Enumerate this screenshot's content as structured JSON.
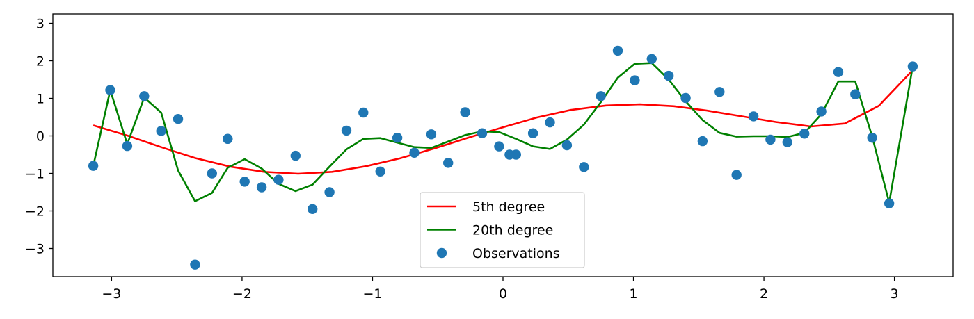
{
  "chart_data": {
    "type": "line",
    "title": "",
    "xlabel": "",
    "ylabel": "",
    "xlim": [
      -3.45,
      3.45
    ],
    "ylim": [
      -3.75,
      3.25
    ],
    "grid": false,
    "legend_position": "bottom-center",
    "xticks": [
      -3,
      -2,
      -1,
      0,
      1,
      2,
      3
    ],
    "yticks": [
      -3,
      -2,
      -1,
      0,
      1,
      2,
      3
    ],
    "xtick_labels": [
      "−3",
      "−2",
      "−1",
      "0",
      "1",
      "2",
      "3"
    ],
    "ytick_labels": [
      "−3",
      "−2",
      "−1",
      "0",
      "1",
      "2",
      "3"
    ],
    "series": [
      {
        "name": "5th degree",
        "kind": "line",
        "color": "#ff0000",
        "x": [
          -3.14,
          -2.88,
          -2.62,
          -2.36,
          -2.09,
          -1.83,
          -1.57,
          -1.31,
          -1.05,
          -0.79,
          -0.52,
          -0.26,
          0.0,
          0.26,
          0.52,
          0.79,
          1.05,
          1.31,
          1.57,
          1.83,
          2.09,
          2.36,
          2.62,
          2.88,
          3.14
        ],
        "y": [
          0.28,
          0.01,
          -0.3,
          -0.59,
          -0.82,
          -0.96,
          -1.01,
          -0.96,
          -0.81,
          -0.6,
          -0.33,
          -0.04,
          0.23,
          0.49,
          0.69,
          0.81,
          0.84,
          0.79,
          0.67,
          0.52,
          0.37,
          0.25,
          0.33,
          0.8,
          1.75
        ]
      },
      {
        "name": "20th degree",
        "kind": "line",
        "color": "#008000",
        "x": [
          -3.14,
          -3.01,
          -2.88,
          -2.75,
          -2.62,
          -2.49,
          -2.36,
          -2.23,
          -2.11,
          -1.98,
          -1.85,
          -1.72,
          -1.59,
          -1.46,
          -1.33,
          -1.2,
          -1.07,
          -0.94,
          -0.81,
          -0.68,
          -0.55,
          -0.42,
          -0.29,
          -0.16,
          -0.03,
          0.1,
          0.23,
          0.36,
          0.49,
          0.62,
          0.75,
          0.88,
          1.01,
          1.14,
          1.27,
          1.4,
          1.53,
          1.66,
          1.79,
          1.92,
          2.05,
          2.18,
          2.31,
          2.44,
          2.57,
          2.7,
          2.83,
          2.96,
          3.14
        ],
        "y": [
          -0.8,
          1.22,
          -0.22,
          1.02,
          0.62,
          -0.92,
          -1.74,
          -1.52,
          -0.85,
          -0.62,
          -0.87,
          -1.28,
          -1.47,
          -1.3,
          -0.82,
          -0.36,
          -0.08,
          -0.06,
          -0.18,
          -0.3,
          -0.32,
          -0.15,
          0.02,
          0.12,
          0.1,
          -0.08,
          -0.28,
          -0.35,
          -0.1,
          0.3,
          0.9,
          1.55,
          1.92,
          1.94,
          1.5,
          0.92,
          0.42,
          0.08,
          -0.02,
          -0.01,
          -0.01,
          -0.03,
          0.08,
          0.58,
          1.45,
          1.45,
          -0.02,
          -1.78,
          1.85
        ]
      },
      {
        "name": "Observations",
        "kind": "scatter",
        "color": "#1f77b4",
        "x": [
          -3.14,
          -3.01,
          -2.88,
          -2.75,
          -2.62,
          -2.49,
          -2.36,
          -2.23,
          -2.11,
          -1.98,
          -1.85,
          -1.72,
          -1.59,
          -1.46,
          -1.33,
          -1.2,
          -1.07,
          -0.94,
          -0.81,
          -0.68,
          -0.55,
          -0.42,
          -0.29,
          -0.16,
          -0.03,
          0.1,
          0.23,
          0.36,
          0.49,
          0.62,
          0.75,
          0.88,
          1.01,
          1.14,
          1.27,
          1.4,
          1.53,
          1.66,
          1.79,
          1.92,
          2.05,
          2.18,
          2.31,
          2.44,
          2.57,
          2.7,
          2.83,
          2.96,
          3.14,
          0.05,
          -2.11
        ],
        "y": [
          -0.8,
          1.22,
          -0.27,
          1.06,
          0.13,
          0.45,
          -3.43,
          -1.0,
          -0.08,
          -1.22,
          -1.37,
          -1.17,
          -0.53,
          -1.95,
          -1.5,
          0.14,
          0.62,
          -0.95,
          -0.05,
          -0.45,
          0.04,
          -0.72,
          0.63,
          0.07,
          -0.28,
          -0.5,
          0.07,
          0.36,
          -0.25,
          -0.83,
          1.06,
          2.27,
          1.48,
          2.05,
          1.6,
          1.01,
          -0.14,
          1.17,
          -1.04,
          0.52,
          -0.1,
          -0.17,
          0.06,
          0.65,
          1.7,
          1.11,
          -0.05,
          -1.8,
          1.85,
          -0.5,
          -0.08
        ]
      }
    ]
  }
}
